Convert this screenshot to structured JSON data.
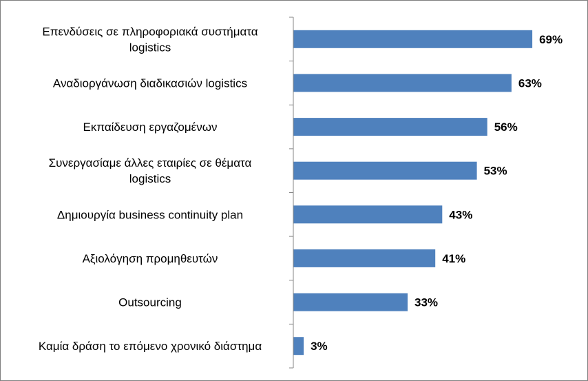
{
  "chart_data": {
    "type": "bar",
    "orientation": "horizontal",
    "title": "",
    "xlabel": "",
    "ylabel": "",
    "categories": [
      "Επενδύσεις σε πληροφοριακά συστήματα logistics",
      "Αναδιοργάνωση διαδικασιών logistics",
      "Εκπαίδευση εργαζομένων",
      "Συνεργασίαμε άλλες εταιρίες σε θέματα logistics",
      "Δημιουργία business continuity plan",
      "Αξιολόγηση προμηθευτών",
      "Outsourcing",
      "Καμία δράση το επόμενο χρονικό διάστημα"
    ],
    "category_lines": [
      [
        "Επενδύσεις σε πληροφοριακά συστήματα",
        "logistics"
      ],
      [
        "Αναδιοργάνωση διαδικασιών logistics"
      ],
      [
        "Εκπαίδευση εργαζομένων"
      ],
      [
        "Συνεργασίαμε άλλες εταιρίες σε θέματα",
        "logistics"
      ],
      [
        "Δημιουργία business continuity plan"
      ],
      [
        "Αξιολόγηση προμηθευτών"
      ],
      [
        "Outsourcing"
      ],
      [
        "Καμία δράση το επόμενο χρονικό διάστημα"
      ]
    ],
    "values": [
      69,
      63,
      56,
      53,
      43,
      41,
      33,
      3
    ],
    "value_labels": [
      "69%",
      "63%",
      "56%",
      "53%",
      "43%",
      "41%",
      "33%",
      "3%"
    ],
    "xlim": [
      0,
      100
    ],
    "grid": false,
    "legend": "none",
    "bar_color": "#4f81bd",
    "axis_color": "#868686"
  }
}
